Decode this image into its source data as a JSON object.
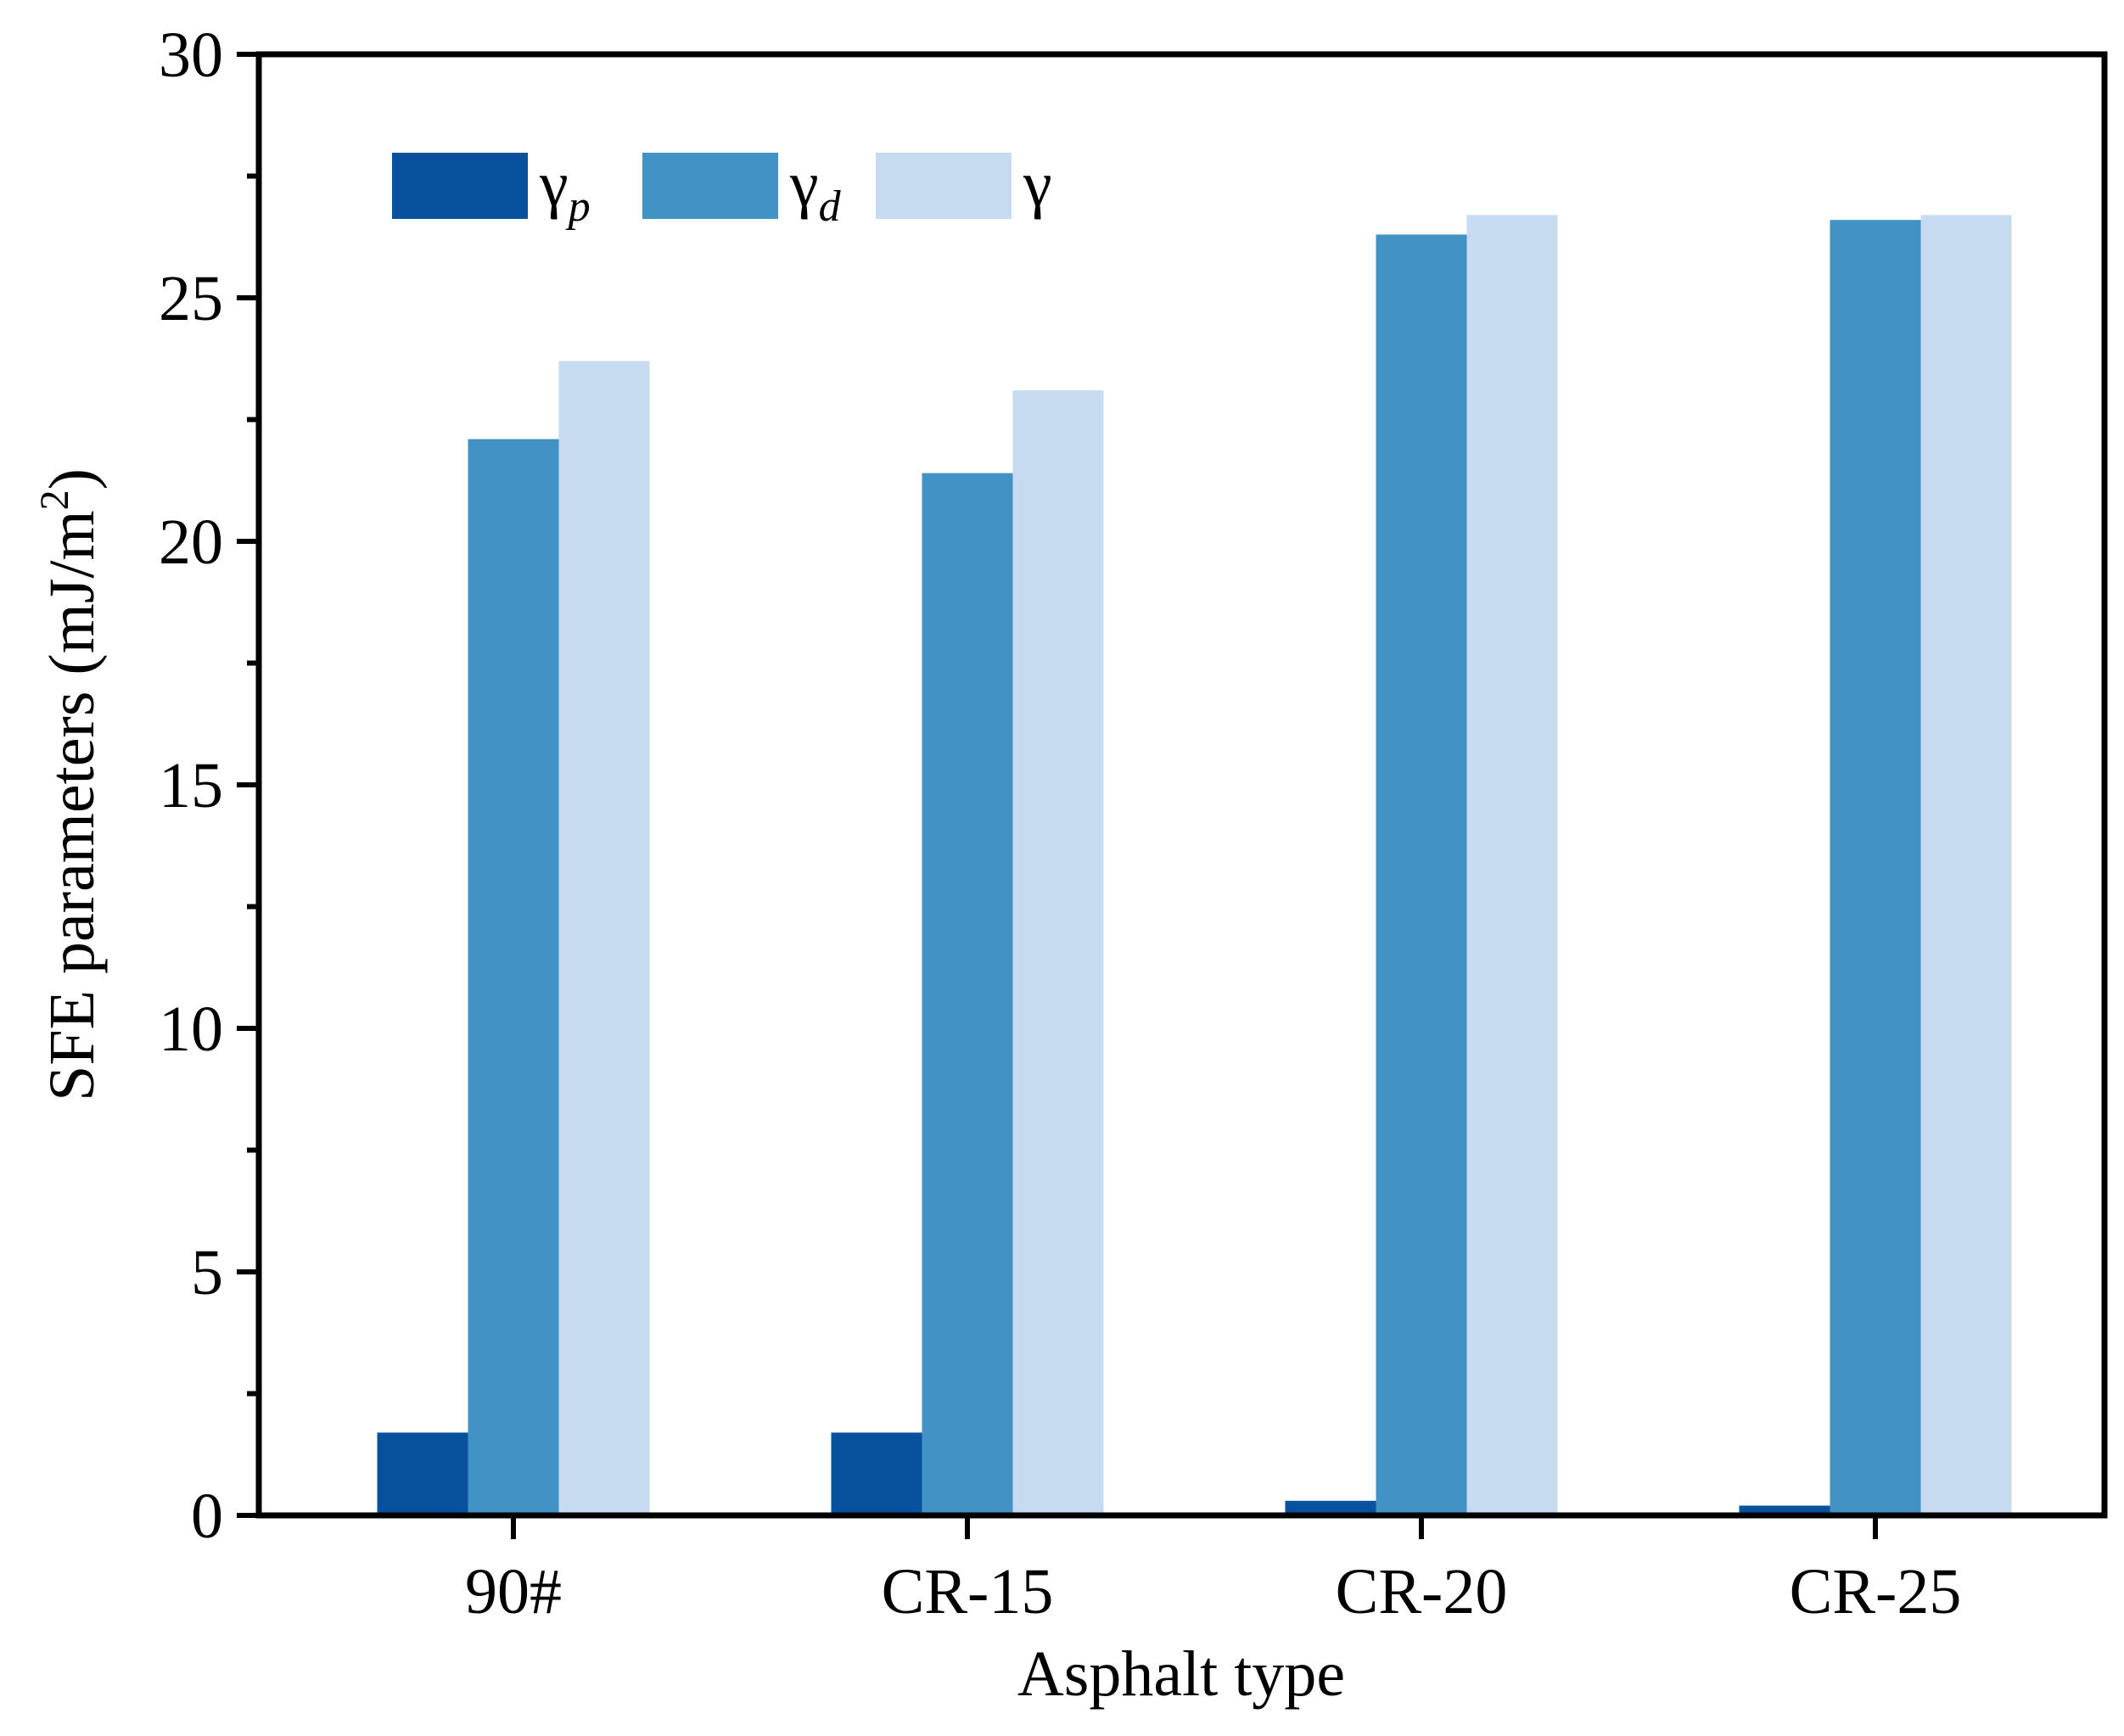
{
  "chart_data": {
    "type": "bar",
    "title": "",
    "xlabel": "Asphalt type",
    "ylabel": "SFE parameters (mJ/m",
    "ylabel_sup": "2",
    "ylabel_close": ")",
    "ylim": [
      0,
      30
    ],
    "yticks": [
      0,
      5,
      10,
      15,
      20,
      25,
      30
    ],
    "grid": false,
    "legend_position": "top-left",
    "categories": [
      "90#",
      "CR-15",
      "CR-20",
      "CR-25"
    ],
    "series": [
      {
        "name": "γp",
        "symbol": "γ",
        "subscript": "p",
        "color": "#08519c",
        "values": [
          1.7,
          1.7,
          0.3,
          0.2
        ]
      },
      {
        "name": "γd",
        "symbol": "γ",
        "subscript": "d",
        "color": "#4292c6",
        "values": [
          22.1,
          21.4,
          26.3,
          26.6
        ]
      },
      {
        "name": "γ",
        "symbol": "γ",
        "subscript": "",
        "color": "#c6dbef",
        "values": [
          23.7,
          23.1,
          26.7,
          26.7
        ]
      }
    ]
  }
}
